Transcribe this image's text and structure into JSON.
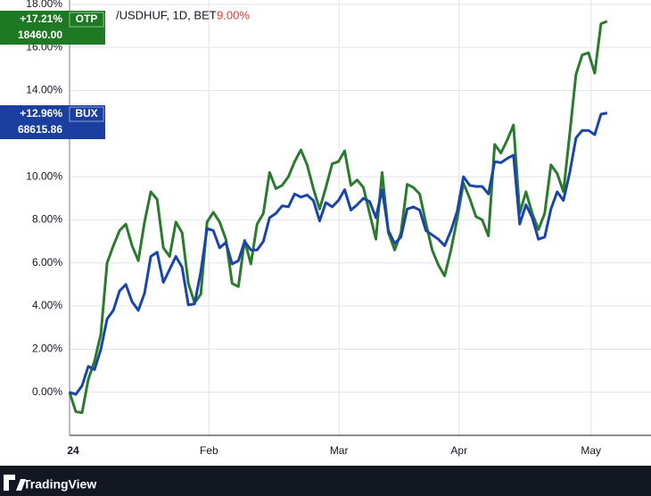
{
  "chart_data": {
    "type": "line",
    "title": "/USDHUF, 1D, BET",
    "title_value": "9.00%",
    "xlim": [
      0,
      93
    ],
    "ylim": [
      -2,
      18.2
    ],
    "xticks": [
      {
        "value": 0,
        "label": "24"
      },
      {
        "value": 22.3,
        "label": "Feb"
      },
      {
        "value": 43.1,
        "label": "Mar"
      },
      {
        "value": 62.3,
        "label": "Apr"
      },
      {
        "value": 83.4,
        "label": "May"
      }
    ],
    "yticks": [
      {
        "value": 0,
        "label": "0.00%"
      },
      {
        "value": 2,
        "label": "2.00%"
      },
      {
        "value": 4,
        "label": "4.00%"
      },
      {
        "value": 6,
        "label": "6.00%"
      },
      {
        "value": 8,
        "label": "8.00%"
      },
      {
        "value": 10,
        "label": "10.00%"
      },
      {
        "value": 14,
        "label": "14.00%"
      },
      {
        "value": 16,
        "label": "16.00%"
      },
      {
        "value": 18,
        "label": "18.00%"
      }
    ],
    "grid": true,
    "x": [
      0,
      1,
      2,
      3,
      4,
      5,
      6,
      7,
      8,
      9,
      10,
      11,
      12,
      13,
      14,
      15,
      16,
      17,
      18,
      19,
      20,
      21,
      22,
      23,
      24,
      25,
      26,
      27,
      28,
      29,
      30,
      31,
      32,
      33,
      34,
      35,
      36,
      37,
      38,
      39,
      40,
      41,
      42,
      43,
      44,
      45,
      46,
      47,
      48,
      49,
      50,
      51,
      52,
      53,
      54,
      55,
      56,
      57,
      58,
      59,
      60,
      61,
      62,
      63,
      64,
      65,
      66,
      67,
      68,
      69,
      70,
      71,
      72,
      73,
      74,
      75,
      76,
      77,
      78,
      79,
      80,
      81,
      82,
      83,
      84,
      85,
      86
    ],
    "series": [
      {
        "name": "OTP",
        "color": "#2b7a2e",
        "tag_color": "#1e7a22",
        "change": "+17.21%",
        "last": "18460.00",
        "values": [
          0,
          -0.9,
          -0.95,
          0.6,
          1.45,
          2.7,
          6.0,
          6.8,
          7.5,
          7.8,
          6.8,
          6.1,
          7.9,
          9.3,
          8.95,
          6.7,
          6.3,
          7.9,
          7.4,
          5.05,
          4.15,
          4.55,
          7.9,
          8.35,
          7.9,
          7.1,
          5.05,
          4.9,
          7.05,
          5.95,
          7.8,
          8.3,
          10.2,
          9.45,
          9.6,
          10.0,
          10.7,
          11.25,
          10.55,
          9.45,
          8.5,
          9.5,
          10.6,
          10.7,
          11.2,
          9.6,
          9.85,
          9.5,
          8.3,
          7.1,
          10.2,
          7.4,
          6.6,
          7.4,
          9.65,
          9.5,
          9.2,
          7.85,
          6.6,
          5.9,
          5.4,
          6.6,
          8.05,
          9.7,
          9.0,
          8.15,
          8.0,
          7.25,
          11.5,
          11.1,
          11.7,
          12.4,
          8.3,
          9.3,
          8.3,
          7.55,
          8.3,
          10.55,
          10.15,
          9.3,
          12.0,
          14.75,
          15.65,
          15.75,
          14.8,
          17.1,
          17.21
        ]
      },
      {
        "name": "BUX",
        "color": "#1a45a8",
        "tag_color": "#1a3fa0",
        "change": "+12.96%",
        "last": "68615.86",
        "values": [
          0,
          -0.1,
          0.3,
          1.2,
          1.05,
          2.0,
          3.4,
          3.8,
          4.7,
          5.0,
          4.2,
          3.8,
          4.6,
          6.3,
          6.5,
          5.1,
          5.7,
          6.3,
          5.8,
          4.05,
          4.1,
          5.6,
          7.6,
          7.5,
          6.7,
          6.95,
          5.95,
          6.1,
          7.0,
          6.6,
          6.6,
          7.0,
          8.1,
          8.3,
          8.65,
          8.6,
          9.2,
          9.05,
          9.15,
          8.9,
          7.95,
          8.8,
          8.6,
          8.9,
          9.4,
          8.45,
          8.7,
          9.0,
          8.85,
          8.1,
          9.4,
          7.5,
          6.9,
          7.2,
          8.5,
          8.6,
          8.45,
          7.5,
          7.3,
          7.1,
          6.8,
          7.5,
          8.4,
          10.0,
          9.6,
          9.55,
          9.55,
          9.2,
          10.7,
          10.65,
          10.85,
          11.0,
          7.8,
          8.7,
          8.1,
          7.1,
          7.2,
          8.5,
          9.3,
          8.9,
          10.2,
          11.8,
          12.15,
          12.15,
          11.95,
          12.9,
          12.96
        ]
      }
    ]
  },
  "footer": {
    "brand": "TradingView"
  }
}
